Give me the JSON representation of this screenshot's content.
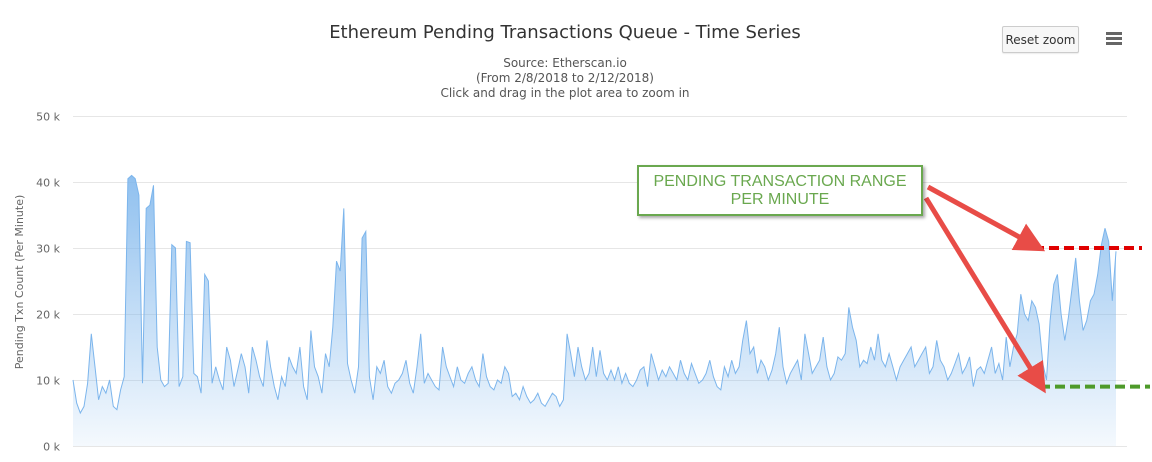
{
  "chart_data": {
    "type": "area",
    "title": "Ethereum Pending Transactions Queue - Time Series",
    "subtitle_lines": [
      "Source: Etherscan.io",
      "(From 2/8/2018 to 2/12/2018)",
      "Click and drag in the plot area to zoom in"
    ],
    "ylabel": "Pending Txn Count (Per Minute)",
    "xlabel": "",
    "ylim": [
      0,
      50000
    ],
    "y_ticks": [
      0,
      10000,
      20000,
      30000,
      40000,
      50000
    ],
    "y_tick_labels": [
      "0 k",
      "10 k",
      "20 k",
      "30 k",
      "40 k",
      "50 k"
    ],
    "grid": true,
    "legend": "none",
    "series": [
      {
        "values": [
          10000,
          6500,
          5000,
          6000,
          9500,
          17000,
          12000,
          7000,
          9000,
          8000,
          10000,
          6000,
          5500,
          8500,
          10500,
          40500,
          41000,
          40500,
          38000,
          9500,
          36000,
          36500,
          39500,
          15000,
          10000,
          9000,
          9500,
          30500,
          30000,
          9000,
          10500,
          31000,
          30800,
          11000,
          10500,
          8000,
          26000,
          25000,
          9500,
          12000,
          10000,
          8500,
          15000,
          13000,
          9000,
          11500,
          14000,
          12000,
          8000,
          15000,
          13000,
          10500,
          9000,
          16000,
          12000,
          9000,
          7000,
          10500,
          9000,
          13500,
          12000,
          11000,
          15000,
          9000,
          7000,
          17500,
          12000,
          10500,
          8000,
          14000,
          12000,
          18000,
          28000,
          26500,
          36000,
          12500,
          10000,
          8000,
          12000,
          31500,
          32500,
          10500,
          7000,
          12000,
          11000,
          13000,
          9000,
          8000,
          9500,
          10000,
          11000,
          13000,
          9500,
          8000,
          12000,
          17000,
          9500,
          11000,
          10000,
          9000,
          8500,
          15000,
          12000,
          10500,
          9000,
          12000,
          10000,
          9500,
          11000,
          12000,
          10000,
          9000,
          14000,
          10500,
          9000,
          8500,
          10000,
          9500,
          12000,
          11000,
          7500,
          8000,
          7000,
          9000,
          7500,
          6500,
          7000,
          8000,
          6500,
          6000,
          7000,
          8000,
          7500,
          6000,
          7000,
          17000,
          14000,
          10500,
          15000,
          12000,
          10000,
          11000,
          15000,
          10500,
          14500,
          11000,
          10000,
          11500,
          10000,
          12000,
          9500,
          11000,
          9500,
          9000,
          10000,
          11500,
          12000,
          9000,
          14000,
          12000,
          10000,
          11500,
          10500,
          12000,
          11000,
          10000,
          13000,
          11000,
          10000,
          12500,
          11000,
          9500,
          10000,
          11000,
          13000,
          10500,
          9000,
          8500,
          12000,
          10500,
          13000,
          11000,
          12000,
          16000,
          19000,
          14000,
          15000,
          11000,
          13000,
          12000,
          10000,
          11500,
          14000,
          18000,
          12000,
          9500,
          11000,
          12000,
          13000,
          10000,
          17000,
          14000,
          11000,
          12000,
          13000,
          16500,
          12000,
          10000,
          11000,
          13500,
          13000,
          14000,
          21000,
          18000,
          16000,
          12000,
          13000,
          12500,
          15000,
          13000,
          17000,
          13000,
          12000,
          14000,
          12000,
          10000,
          12000,
          13000,
          14000,
          15000,
          12000,
          13000,
          14000,
          15000,
          11000,
          12000,
          16000,
          13000,
          12000,
          10000,
          11000,
          12500,
          14000,
          11000,
          12000,
          13500,
          9000,
          11500,
          12000,
          11000,
          13000,
          15000,
          11000,
          12500,
          10000,
          16500,
          12000,
          15000,
          17000,
          23000,
          20000,
          19000,
          22000,
          21000,
          18500,
          12500,
          10000,
          19000,
          24500,
          26000,
          20000,
          16000,
          19500,
          24000,
          28500,
          22000,
          17500,
          19000,
          22000,
          23000,
          26000,
          30500,
          33000,
          31000,
          22000,
          29500
        ]
      }
    ],
    "annotation": {
      "text_line1": "PENDING TRANSACTION RANGE",
      "text_line2": "PER MINUTE",
      "range_high": 30000,
      "range_low": 9000
    },
    "colors": {
      "line": "#7cb5ec",
      "fill_top": "#7cb5ec",
      "grid": "#e6e6e6",
      "arrow": "#e84c47",
      "high_dash": "#e00000",
      "low_dash": "#4e9a2a",
      "annot_border": "#6aa84f"
    }
  },
  "ui": {
    "reset_zoom_label": "Reset zoom",
    "menu_icon": "hamburger-menu-icon"
  }
}
